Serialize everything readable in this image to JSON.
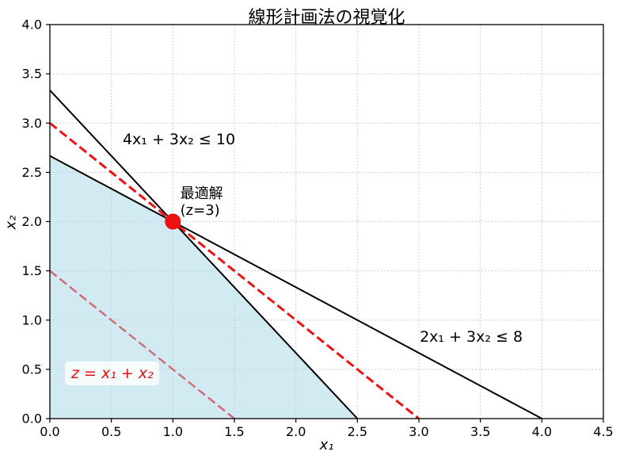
{
  "chart_data": {
    "type": "line",
    "title": "線形計画法の視覚化",
    "xlabel": "x₁",
    "ylabel": "x₂",
    "xlim": [
      0,
      4.5
    ],
    "ylim": [
      0,
      4.0
    ],
    "xticks": [
      "0.0",
      "0.5",
      "1.0",
      "1.5",
      "2.0",
      "2.5",
      "3.0",
      "3.5",
      "4.0",
      "4.5"
    ],
    "yticks": [
      "0.0",
      "0.5",
      "1.0",
      "1.5",
      "2.0",
      "2.5",
      "3.0",
      "3.5",
      "4.0"
    ],
    "grid": true,
    "grid_color": "#bfbfbf",
    "frame_color": "#000000",
    "feasible_region": {
      "vertices": [
        [
          0,
          0
        ],
        [
          2.5,
          0
        ],
        [
          1,
          2
        ],
        [
          0,
          2.6667
        ]
      ],
      "fill": "#ADD8E6",
      "opacity": 0.55
    },
    "series": [
      {
        "name": "constraint-1",
        "equation": "4x₁ + 3x₂ ≤ 10",
        "points": [
          [
            0,
            3.3333
          ],
          [
            2.5,
            0
          ]
        ],
        "color": "#000000",
        "dash": "solid",
        "width": 2
      },
      {
        "name": "constraint-2",
        "equation": "2x₁ + 3x₂ ≤ 8",
        "points": [
          [
            0,
            2.6667
          ],
          [
            4,
            0
          ]
        ],
        "color": "#000000",
        "dash": "solid",
        "width": 2
      },
      {
        "name": "objective-z3",
        "equation": "x₁ + x₂ = 3",
        "points": [
          [
            0,
            3
          ],
          [
            3,
            0
          ]
        ],
        "color": "#ee1111",
        "dash": "dashed",
        "width": 3
      },
      {
        "name": "objective-z1.5",
        "equation": "x₁ + x₂ = 1.5",
        "points": [
          [
            0,
            1.5
          ],
          [
            1.5,
            0
          ]
        ],
        "color": "#d06d7c",
        "dash": "dashed",
        "width": 2.5
      }
    ],
    "optimal_point": {
      "x": 1,
      "y": 2,
      "color": "#ee1111",
      "radius": 9.5
    },
    "annotations": [
      {
        "name": "constraint1-label",
        "text": "4x₁ + 3x₂ ≤ 10",
        "x": 0.592,
        "y": 2.785,
        "color": "#000000",
        "size": 19
      },
      {
        "name": "constraint2-label",
        "text": "2x₁ + 3x₂ ≤ 8",
        "x": 3.007,
        "y": 0.781,
        "color": "#000000",
        "size": 19
      },
      {
        "name": "optimal-label",
        "lines": [
          "最適解",
          "(z=3)"
        ],
        "x": 1.06,
        "y": 2.237,
        "color": "#000000",
        "size": 18
      },
      {
        "name": "objective-label",
        "text": "z = x₁ + x₂",
        "x": 0.174,
        "y": 0.41,
        "color": "#e01010",
        "size": 19,
        "italic": true,
        "box": true
      }
    ]
  }
}
